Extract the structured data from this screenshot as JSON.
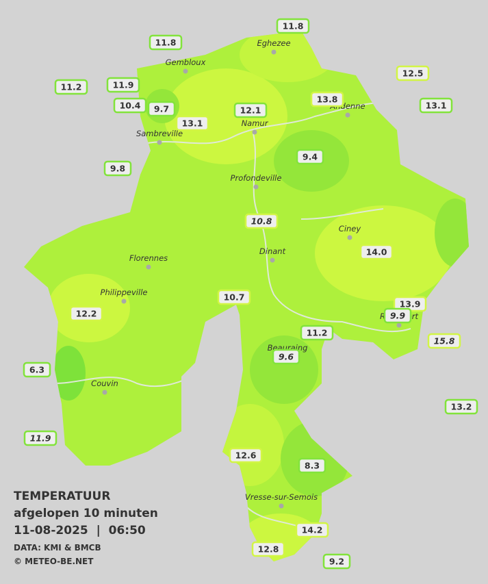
{
  "stations": [
    "11.8",
    "11.8",
    "11.2",
    "11.9",
    "10.4",
    "9.7",
    "13.1",
    "12.1",
    "13.8",
    "12.5",
    "13.1",
    "9.4",
    "9.8",
    "10.8",
    "14.0",
    "10.7",
    "12.2",
    "13.9",
    "9.9",
    "11.2",
    "15.8",
    "9.6",
    "6.3",
    "13.2",
    "11.9",
    "12.6",
    "8.3",
    "14.2",
    "12.8",
    "9.2"
  ],
  "cities": [
    "Eghezee",
    "Gembloux",
    "Andenne",
    "Namur",
    "Sambreville",
    "Profondeville",
    "Ciney",
    "Florennes",
    "Dinant",
    "Philippeville",
    "Rochefort",
    "Beauraing",
    "Couvin",
    "Vresse-sur-Semois"
  ],
  "legend": {
    "title": "TEMPERATUUR",
    "subtitle": "afgelopen 10 minuten",
    "datetime": "11-08-2025  |  06:50",
    "source": "DATA: KMI & BMCB",
    "credit": "© METEO-BE.NET"
  }
}
